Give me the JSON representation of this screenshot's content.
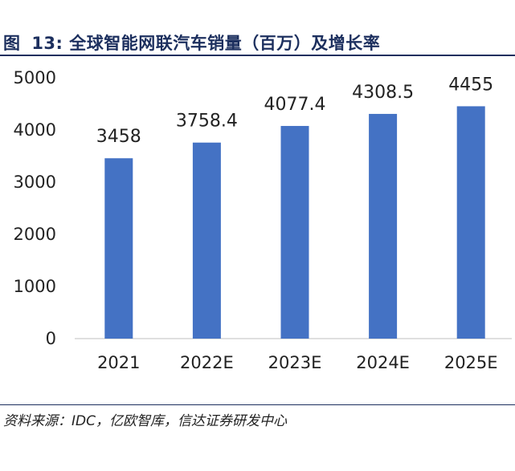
{
  "header": {
    "figure_label": "图",
    "figure_number": "13:",
    "title_text": "全球智能网联汽车销量（百万）及增长率"
  },
  "chart_data": {
    "type": "bar",
    "title": "全球智能网联汽车销量（百万）及增长率",
    "categories": [
      "2021",
      "2022E",
      "2023E",
      "2024E",
      "2025E"
    ],
    "values": [
      3458,
      3758.4,
      4077.4,
      4308.5,
      4455
    ],
    "value_labels": [
      "3458",
      "3758.4",
      "4077.4",
      "4308.5",
      "4455"
    ],
    "ylim": [
      0,
      5000
    ],
    "yticks": [
      "0",
      "1000",
      "2000",
      "3000",
      "4000",
      "5000"
    ],
    "xlabel": "",
    "ylabel": "",
    "grid": false,
    "legend": "none",
    "bar_color": "#4472c4"
  },
  "footer": {
    "source": "资料来源：IDC，亿欧智库，信达证券研发中心"
  }
}
